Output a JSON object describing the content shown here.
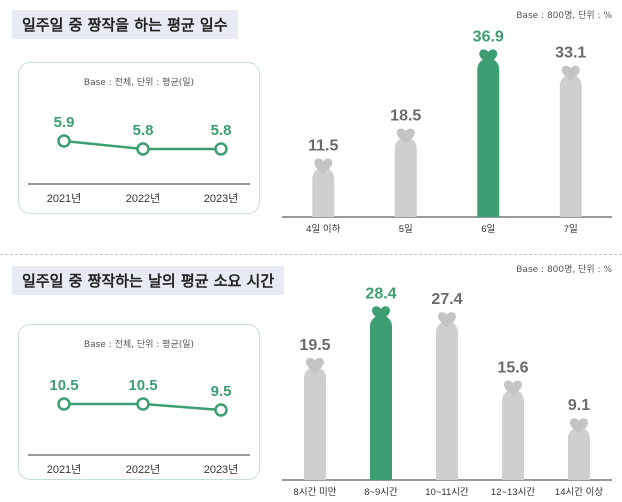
{
  "section1": {
    "title": "일주일 중 짱작을 하는 평균 일수",
    "base_note": "Base : 800명, 단위 : %",
    "inset_chart": {
      "type": "line",
      "base_note": "Base : 전체, 단위 : 평균(일)",
      "categories": [
        "2021년",
        "2022년",
        "2023년"
      ],
      "values": [
        5.9,
        5.8,
        5.8
      ],
      "labels": [
        "5.9",
        "5.8",
        "5.8"
      ]
    },
    "bar_chart": {
      "type": "bar",
      "categories": [
        "4일 이하",
        "5일",
        "6일",
        "7일"
      ],
      "values": [
        11.5,
        18.5,
        36.9,
        33.1
      ],
      "labels": [
        "11.5",
        "18.5",
        "36.9",
        "33.1"
      ],
      "highlight_index": 2
    }
  },
  "section2": {
    "title": "일주일 중 짱작하는 날의 평균 소요 시간",
    "base_note": "Base : 800명, 단위 : %",
    "inset_chart": {
      "type": "line",
      "base_note": "Base : 전체, 단위 : 평균(일)",
      "categories": [
        "2021년",
        "2022년",
        "2023년"
      ],
      "values": [
        10.5,
        10.5,
        9.5
      ],
      "labels": [
        "10.5",
        "10.5",
        "9.5"
      ]
    },
    "bar_chart": {
      "type": "bar",
      "categories": [
        "8시간 미만",
        "8~9시간",
        "10~11시간",
        "12~13시간",
        "14시간 이상"
      ],
      "values": [
        19.5,
        28.4,
        27.4,
        15.6,
        9.1
      ],
      "labels": [
        "19.5",
        "28.4",
        "27.4",
        "15.6",
        "9.1"
      ],
      "highlight_index": 1
    }
  },
  "colors": {
    "green": "#3d9e71",
    "gray": "#cfcfcf",
    "heart_gray": "#c4c4c4",
    "value_gray": "#6b6b6b",
    "axis": "#333333"
  }
}
